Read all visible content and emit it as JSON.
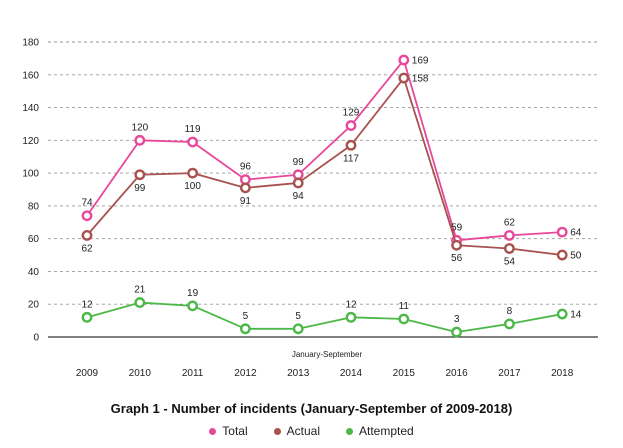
{
  "chart_data": {
    "type": "line",
    "title": "Graph 1 - Number of incidents (January-September of 2009-2018)",
    "subnote": "January-September",
    "xlabel": "",
    "ylabel": "",
    "categories": [
      "2009",
      "2010",
      "2011",
      "2012",
      "2013",
      "2014",
      "2015",
      "2016",
      "2017",
      "2018"
    ],
    "ylim": [
      0,
      180
    ],
    "yticks": [
      0,
      20,
      40,
      60,
      80,
      100,
      120,
      140,
      160,
      180
    ],
    "grid": true,
    "legend_position": "bottom",
    "series": [
      {
        "name": "Total",
        "color": "#e8489a",
        "values": [
          74,
          120,
          119,
          96,
          99,
          129,
          169,
          59,
          62,
          64
        ],
        "label_pos": [
          "above",
          "above",
          "above",
          "above",
          "above",
          "above",
          "right",
          "above",
          "above",
          "right"
        ]
      },
      {
        "name": "Actual",
        "color": "#a8524f",
        "values": [
          62,
          99,
          100,
          91,
          94,
          117,
          158,
          56,
          54,
          50
        ],
        "label_pos": [
          "below",
          "below",
          "below",
          "below",
          "below",
          "below",
          "right",
          "below",
          "below",
          "right"
        ]
      },
      {
        "name": "Attempted",
        "color": "#4cb848",
        "values": [
          12,
          21,
          19,
          5,
          5,
          12,
          11,
          3,
          8,
          14
        ],
        "label_pos": [
          "above",
          "above",
          "above",
          "above",
          "above",
          "above",
          "above",
          "above",
          "above",
          "right"
        ]
      }
    ]
  }
}
